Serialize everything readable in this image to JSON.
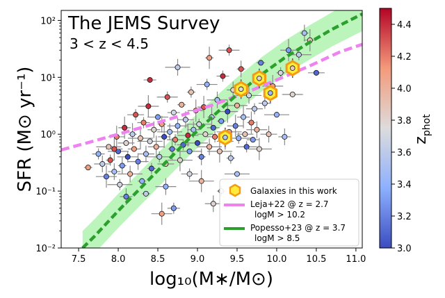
{
  "chart_data": {
    "type": "scatter",
    "title": "The JEMS Survey",
    "subtitle": "3 < z < 4.5",
    "xlabel": "log₁₀(M∗/M⊙)",
    "ylabel": "SFR (M⊙ yr⁻¹)",
    "xlim": [
      7.28,
      11.08
    ],
    "ylim": [
      0.01,
      150
    ],
    "yscale": "log",
    "x_ticks": [
      7.5,
      8.0,
      8.5,
      9.0,
      9.5,
      10.0,
      10.5,
      11.0
    ],
    "x_tick_labels": [
      "7.5",
      "8.0",
      "8.5",
      "9.0",
      "9.5",
      "10.0",
      "10.5",
      "11.0"
    ],
    "y_ticks": [
      0.01,
      0.1,
      1,
      10,
      100
    ],
    "y_tick_labels": [
      "10⁻²",
      "10⁻¹",
      "10⁰",
      "10¹",
      "10²"
    ],
    "colorbar": {
      "label": "z_phot",
      "label_main": "z",
      "label_sub": "phot",
      "range": [
        3.0,
        4.5
      ],
      "ticks": [
        3.0,
        3.2,
        3.4,
        3.6,
        3.8,
        4.0,
        4.2,
        4.4
      ],
      "tick_labels": [
        "3.0",
        "3.2",
        "3.4",
        "3.6",
        "3.8",
        "4.0",
        "4.2",
        "4.4"
      ],
      "colormap": "coolwarm"
    },
    "highlighted_galaxies": {
      "name": "Galaxies in this work",
      "points": [
        {
          "x": 9.35,
          "y": 0.88,
          "z": 3.55
        },
        {
          "x": 9.55,
          "y": 6.2,
          "z": 3.75
        },
        {
          "x": 9.78,
          "y": 9.6,
          "z": 3.8
        },
        {
          "x": 9.92,
          "y": 5.3,
          "z": 3.45
        },
        {
          "x": 10.2,
          "y": 14.5,
          "z": 3.85
        }
      ]
    },
    "relations": [
      {
        "name": "Leja+22 @ z = 2.7",
        "condition": "logM > 10.2",
        "color": "#ee82ee",
        "x": [
          7.28,
          7.6,
          8.0,
          8.4,
          8.8,
          9.2,
          9.6,
          10.0,
          10.4,
          10.8,
          11.08
        ],
        "y": [
          0.53,
          0.7,
          1.0,
          1.45,
          2.15,
          3.3,
          5.3,
          9.0,
          15.5,
          28.0,
          38.0
        ]
      },
      {
        "name": "Popesso+23 @ z = 3.7",
        "condition": "logM > 8.5",
        "color": "#2ca02c",
        "x": [
          7.55,
          7.7,
          8.0,
          8.3,
          8.6,
          8.9,
          9.2,
          9.5,
          9.8,
          10.1,
          10.4,
          10.7,
          11.08
        ],
        "y": [
          0.01,
          0.016,
          0.045,
          0.12,
          0.32,
          0.85,
          2.1,
          5.0,
          11.0,
          22.0,
          40.0,
          70.0,
          130.0
        ]
      }
    ],
    "legend_labels": {
      "galaxies": "Galaxies in this work",
      "leja_line1": "Leja+22 @ z = 2.7",
      "leja_line2": "logM > 10.2",
      "popesso_line1": "Popesso+23 @ z = 3.7",
      "popesso_line2": "logM > 8.5"
    },
    "legend_position": "lower-right",
    "scatter_sample": [
      {
        "x": 7.62,
        "y": 0.26,
        "z": 4.1
      },
      {
        "x": 7.75,
        "y": 0.45,
        "z": 3.4
      },
      {
        "x": 7.8,
        "y": 0.3,
        "z": 3.6
      },
      {
        "x": 7.85,
        "y": 0.18,
        "z": 3.2
      },
      {
        "x": 7.88,
        "y": 0.6,
        "z": 3.9
      },
      {
        "x": 7.9,
        "y": 0.35,
        "z": 4.3
      },
      {
        "x": 7.95,
        "y": 0.22,
        "z": 3.5
      },
      {
        "x": 7.98,
        "y": 0.9,
        "z": 4.2
      },
      {
        "x": 8.0,
        "y": 0.5,
        "z": 3.1
      },
      {
        "x": 8.02,
        "y": 0.13,
        "z": 3.7
      },
      {
        "x": 8.05,
        "y": 0.28,
        "z": 3.3
      },
      {
        "x": 8.08,
        "y": 1.3,
        "z": 4.4
      },
      {
        "x": 8.1,
        "y": 0.7,
        "z": 3.8
      },
      {
        "x": 8.12,
        "y": 0.4,
        "z": 3.0
      },
      {
        "x": 8.15,
        "y": 0.2,
        "z": 4.0
      },
      {
        "x": 8.18,
        "y": 1.0,
        "z": 3.6
      },
      {
        "x": 8.2,
        "y": 0.55,
        "z": 4.1
      },
      {
        "x": 8.22,
        "y": 2.2,
        "z": 4.3
      },
      {
        "x": 8.25,
        "y": 0.33,
        "z": 3.2
      },
      {
        "x": 8.28,
        "y": 0.85,
        "z": 3.9
      },
      {
        "x": 8.3,
        "y": 0.15,
        "z": 3.4
      },
      {
        "x": 8.32,
        "y": 1.6,
        "z": 4.2
      },
      {
        "x": 8.35,
        "y": 0.45,
        "z": 3.5
      },
      {
        "x": 8.38,
        "y": 3.1,
        "z": 4.4
      },
      {
        "x": 8.4,
        "y": 0.75,
        "z": 3.7
      },
      {
        "x": 8.42,
        "y": 0.25,
        "z": 3.1
      },
      {
        "x": 8.45,
        "y": 1.2,
        "z": 3.8
      },
      {
        "x": 8.48,
        "y": 0.6,
        "z": 4.0
      },
      {
        "x": 8.5,
        "y": 2.0,
        "z": 3.3
      },
      {
        "x": 8.52,
        "y": 0.4,
        "z": 3.6
      },
      {
        "x": 8.55,
        "y": 1.5,
        "z": 4.1
      },
      {
        "x": 8.58,
        "y": 0.9,
        "z": 3.0
      },
      {
        "x": 8.6,
        "y": 0.3,
        "z": 3.9
      },
      {
        "x": 8.62,
        "y": 4.5,
        "z": 4.3
      },
      {
        "x": 8.65,
        "y": 1.1,
        "z": 3.5
      },
      {
        "x": 8.68,
        "y": 0.55,
        "z": 3.2
      },
      {
        "x": 8.7,
        "y": 2.4,
        "z": 3.7
      },
      {
        "x": 8.72,
        "y": 0.8,
        "z": 4.2
      },
      {
        "x": 8.75,
        "y": 1.4,
        "z": 3.4
      },
      {
        "x": 8.78,
        "y": 0.35,
        "z": 3.8
      },
      {
        "x": 8.8,
        "y": 3.3,
        "z": 4.0
      },
      {
        "x": 8.82,
        "y": 0.65,
        "z": 3.1
      },
      {
        "x": 8.85,
        "y": 1.8,
        "z": 3.6
      },
      {
        "x": 8.88,
        "y": 0.95,
        "z": 4.4
      },
      {
        "x": 8.9,
        "y": 0.5,
        "z": 3.3
      },
      {
        "x": 8.92,
        "y": 5.5,
        "z": 3.9
      },
      {
        "x": 8.95,
        "y": 1.2,
        "z": 3.5
      },
      {
        "x": 8.98,
        "y": 2.6,
        "z": 4.1
      },
      {
        "x": 9.0,
        "y": 0.7,
        "z": 3.0
      },
      {
        "x": 9.02,
        "y": 1.5,
        "z": 3.7
      },
      {
        "x": 9.05,
        "y": 0.4,
        "z": 3.2
      },
      {
        "x": 9.08,
        "y": 3.0,
        "z": 4.3
      },
      {
        "x": 9.1,
        "y": 1.0,
        "z": 3.8
      },
      {
        "x": 9.12,
        "y": 7.5,
        "z": 3.4
      },
      {
        "x": 9.15,
        "y": 0.6,
        "z": 4.0
      },
      {
        "x": 9.18,
        "y": 2.0,
        "z": 3.6
      },
      {
        "x": 9.2,
        "y": 1.3,
        "z": 3.1
      },
      {
        "x": 9.22,
        "y": 0.9,
        "z": 4.2
      },
      {
        "x": 9.25,
        "y": 4.0,
        "z": 3.5
      },
      {
        "x": 9.28,
        "y": 0.5,
        "z": 3.9
      },
      {
        "x": 9.3,
        "y": 1.7,
        "z": 3.3
      },
      {
        "x": 9.32,
        "y": 10.5,
        "z": 4.4
      },
      {
        "x": 9.35,
        "y": 0.75,
        "z": 3.7
      },
      {
        "x": 9.38,
        "y": 2.5,
        "z": 3.0
      },
      {
        "x": 9.4,
        "y": 1.1,
        "z": 4.1
      },
      {
        "x": 9.42,
        "y": 0.38,
        "z": 3.6
      },
      {
        "x": 9.45,
        "y": 6.0,
        "z": 3.8
      },
      {
        "x": 9.48,
        "y": 1.4,
        "z": 3.2
      },
      {
        "x": 9.5,
        "y": 3.2,
        "z": 4.0
      },
      {
        "x": 9.52,
        "y": 0.85,
        "z": 3.4
      },
      {
        "x": 9.55,
        "y": 14.0,
        "z": 4.3
      },
      {
        "x": 9.58,
        "y": 2.0,
        "z": 3.5
      },
      {
        "x": 9.6,
        "y": 1.0,
        "z": 3.9
      },
      {
        "x": 9.62,
        "y": 0.6,
        "z": 3.1
      },
      {
        "x": 9.65,
        "y": 4.8,
        "z": 3.7
      },
      {
        "x": 9.68,
        "y": 1.6,
        "z": 4.2
      },
      {
        "x": 9.7,
        "y": 0.8,
        "z": 3.3
      },
      {
        "x": 9.72,
        "y": 2.8,
        "z": 3.6
      },
      {
        "x": 9.75,
        "y": 1.2,
        "z": 4.0
      },
      {
        "x": 9.78,
        "y": 0.55,
        "z": 3.8
      },
      {
        "x": 9.8,
        "y": 18.0,
        "z": 3.2
      },
      {
        "x": 9.85,
        "y": 3.5,
        "z": 3.6
      },
      {
        "x": 9.9,
        "y": 1.0,
        "z": 3.9
      },
      {
        "x": 9.95,
        "y": 7.0,
        "z": 4.1
      },
      {
        "x": 10.0,
        "y": 2.2,
        "z": 3.4
      },
      {
        "x": 10.05,
        "y": 12.0,
        "z": 3.7
      },
      {
        "x": 10.1,
        "y": 0.9,
        "z": 3.5
      },
      {
        "x": 10.15,
        "y": 30.0,
        "z": 3.3
      },
      {
        "x": 10.2,
        "y": 5.0,
        "z": 3.8
      },
      {
        "x": 10.28,
        "y": 25.0,
        "z": 3.6
      },
      {
        "x": 10.35,
        "y": 60.0,
        "z": 3.5
      },
      {
        "x": 10.42,
        "y": 45.0,
        "z": 3.9
      },
      {
        "x": 10.5,
        "y": 12.0,
        "z": 3.1
      },
      {
        "x": 9.4,
        "y": 30.0,
        "z": 4.3
      },
      {
        "x": 8.75,
        "y": 15.0,
        "z": 3.6
      },
      {
        "x": 9.15,
        "y": 22.0,
        "z": 4.1
      },
      {
        "x": 8.4,
        "y": 9.0,
        "z": 4.4
      },
      {
        "x": 8.9,
        "y": 0.2,
        "z": 3.7
      },
      {
        "x": 8.6,
        "y": 0.12,
        "z": 3.4
      },
      {
        "x": 9.05,
        "y": 0.15,
        "z": 4.0
      },
      {
        "x": 8.35,
        "y": 0.09,
        "z": 3.6
      },
      {
        "x": 8.7,
        "y": 0.05,
        "z": 3.3
      },
      {
        "x": 9.2,
        "y": 0.06,
        "z": 3.8
      },
      {
        "x": 8.55,
        "y": 0.04,
        "z": 4.1
      },
      {
        "x": 9.5,
        "y": 0.2,
        "z": 3.5
      },
      {
        "x": 9.3,
        "y": 0.1,
        "z": 3.9
      },
      {
        "x": 8.1,
        "y": 0.08,
        "z": 3.2
      },
      {
        "x": 7.95,
        "y": 0.55,
        "z": 4.3
      }
    ]
  }
}
